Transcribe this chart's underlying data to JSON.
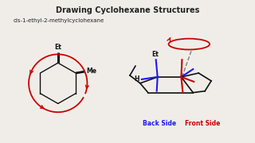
{
  "title": "Drawing Cyclohexane Structures",
  "subtitle": "cis-1-ethyl-2-methylcyclohexane",
  "bg_color": "#f0ede8",
  "title_color": "#222222",
  "subtitle_color": "#222222",
  "red_color": "#cc0000",
  "blue_color": "#1a1aee",
  "black_color": "#111111",
  "back_side_label": "Back Side",
  "front_side_label": "Front Side"
}
